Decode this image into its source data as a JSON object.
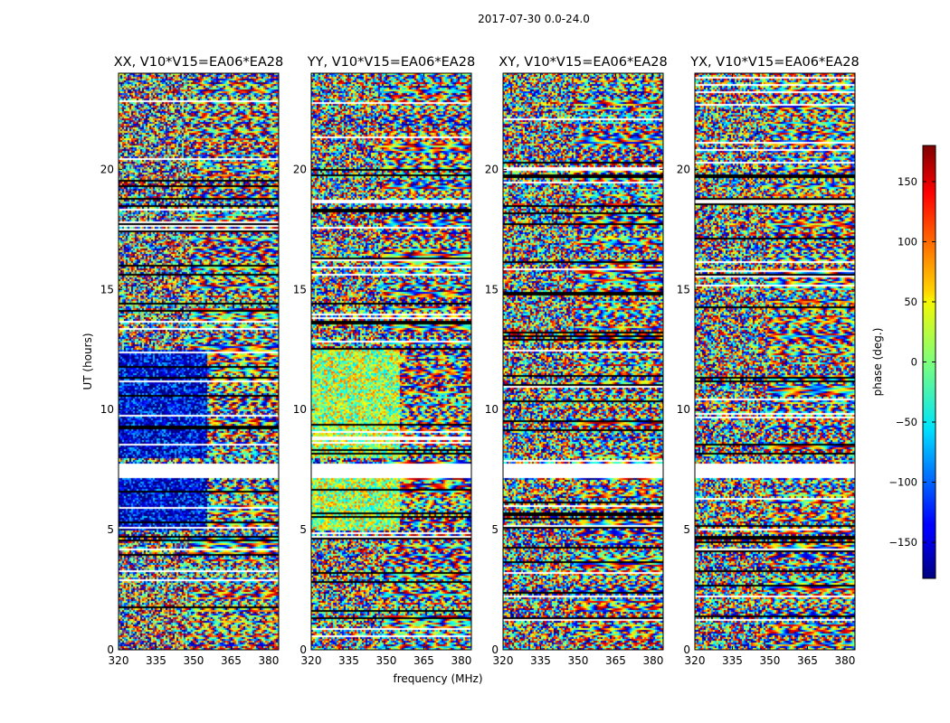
{
  "figure_title": "2017-07-30 0.0-24.0",
  "chart_data": [
    {
      "type": "heatmap",
      "title": "XX, V10*V15=EA06*EA28",
      "ylabel": "UT (hours)",
      "xlabel": "",
      "x_ticks": [
        "320",
        "335",
        "350",
        "365",
        "380"
      ],
      "y_ticks": [
        "0",
        "5",
        "10",
        "15",
        "20"
      ],
      "xlim": [
        320,
        384
      ],
      "ylim": [
        0,
        24
      ],
      "value": "phase (deg.)",
      "colormap": "jet"
    },
    {
      "type": "heatmap",
      "title": "YY, V10*V15=EA06*EA28",
      "ylabel": "",
      "xlabel": "frequency (MHz)",
      "x_ticks": [
        "320",
        "335",
        "350",
        "365",
        "380"
      ],
      "y_ticks": [
        "0",
        "5",
        "10",
        "15",
        "20"
      ],
      "xlim": [
        320,
        384
      ],
      "ylim": [
        0,
        24
      ],
      "value": "phase (deg.)",
      "colormap": "jet"
    },
    {
      "type": "heatmap",
      "title": "XY, V10*V15=EA06*EA28",
      "ylabel": "",
      "xlabel": "",
      "x_ticks": [
        "320",
        "335",
        "350",
        "365",
        "380"
      ],
      "y_ticks": [
        "0",
        "5",
        "10",
        "15",
        "20"
      ],
      "xlim": [
        320,
        384
      ],
      "ylim": [
        0,
        24
      ],
      "value": "phase (deg.)",
      "colormap": "jet"
    },
    {
      "type": "heatmap",
      "title": "YX, V10*V15=EA06*EA28",
      "ylabel": "",
      "xlabel": "",
      "x_ticks": [
        "320",
        "335",
        "350",
        "365",
        "380"
      ],
      "y_ticks": [
        "0",
        "5",
        "10",
        "15",
        "20"
      ],
      "xlim": [
        320,
        384
      ],
      "ylim": [
        0,
        24
      ],
      "value": "phase (deg.)",
      "colormap": "jet"
    }
  ],
  "colorbar": {
    "label": "phase (deg.)",
    "ticks": [
      "150",
      "100",
      "50",
      "0",
      "−50",
      "−100",
      "−150"
    ],
    "tick_values": [
      150,
      100,
      50,
      0,
      -50,
      -100,
      -150
    ],
    "range": [
      -180,
      180
    ],
    "colormap": "jet"
  }
}
